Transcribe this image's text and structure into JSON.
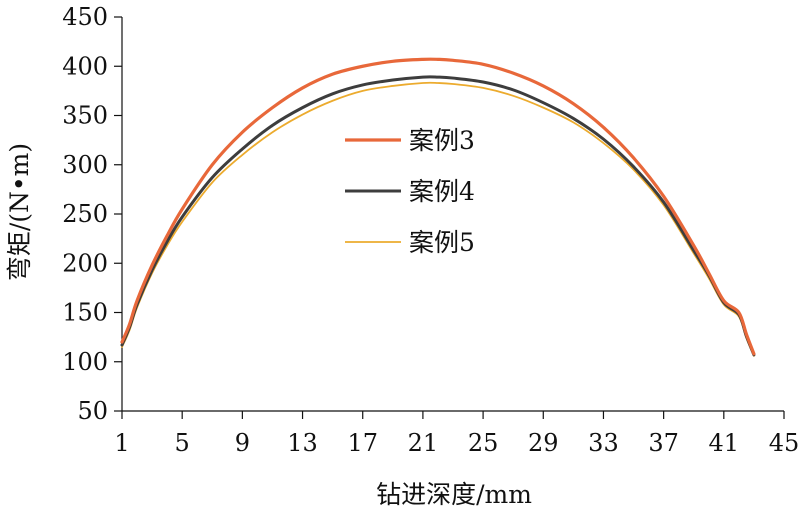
{
  "chart_data": {
    "type": "line",
    "title": "",
    "xlabel": "钻进深度/mm",
    "ylabel": "弯矩/(N•m)",
    "xlim": [
      1,
      45
    ],
    "ylim": [
      50,
      450
    ],
    "xticks": [
      1,
      5,
      9,
      13,
      17,
      21,
      25,
      29,
      33,
      37,
      41,
      45
    ],
    "yticks": [
      50,
      100,
      150,
      200,
      250,
      300,
      350,
      400,
      450
    ],
    "grid": false,
    "legend": "center",
    "series": [
      {
        "name": "案例3",
        "color": "#e8683a",
        "x": [
          1,
          1.5,
          2,
          3,
          4,
          5,
          7,
          9,
          11,
          13,
          15,
          17,
          19,
          21,
          22,
          23,
          25,
          27,
          29,
          31,
          33,
          35,
          37,
          39,
          40,
          41,
          42,
          42.5,
          43
        ],
        "y": [
          120,
          138,
          162,
          198,
          228,
          255,
          300,
          333,
          358,
          378,
          392,
          400,
          405,
          407,
          407,
          406,
          402,
          393,
          380,
          362,
          338,
          307,
          268,
          218,
          190,
          162,
          150,
          128,
          108
        ]
      },
      {
        "name": "案例4",
        "color": "#3d3d3d",
        "x": [
          1,
          1.5,
          2,
          3,
          4,
          5,
          7,
          9,
          11,
          13,
          15,
          17,
          19,
          21,
          22,
          23,
          25,
          27,
          29,
          31,
          33,
          35,
          37,
          39,
          40,
          41,
          42,
          42.5,
          43
        ],
        "y": [
          117,
          135,
          158,
          193,
          222,
          247,
          287,
          316,
          340,
          358,
          372,
          381,
          386,
          389,
          389,
          388,
          384,
          376,
          363,
          347,
          326,
          298,
          262,
          213,
          188,
          160,
          148,
          126,
          107
        ]
      },
      {
        "name": "案例5",
        "color": "#ecab2e",
        "x": [
          1,
          1.5,
          2,
          3,
          4,
          5,
          7,
          9,
          11,
          13,
          15,
          17,
          19,
          21,
          22,
          23,
          25,
          27,
          29,
          31,
          33,
          35,
          37,
          39,
          40,
          41,
          42,
          42.5,
          43
        ],
        "y": [
          115,
          132,
          155,
          190,
          218,
          242,
          282,
          310,
          333,
          351,
          365,
          375,
          380,
          383,
          383,
          382,
          378,
          370,
          358,
          343,
          322,
          295,
          259,
          210,
          185,
          158,
          146,
          124,
          106
        ]
      }
    ]
  }
}
